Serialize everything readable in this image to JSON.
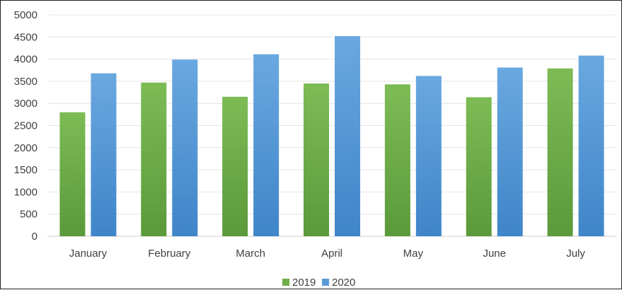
{
  "chart_data": {
    "type": "bar",
    "categories": [
      "January",
      "February",
      "March",
      "April",
      "May",
      "June",
      "July"
    ],
    "series": [
      {
        "name": "2019",
        "values": [
          2800,
          3470,
          3150,
          3450,
          3430,
          3140,
          3790
        ],
        "color": "#70ad47"
      },
      {
        "name": "2020",
        "values": [
          3680,
          3990,
          4110,
          4520,
          3620,
          3810,
          4080
        ],
        "color": "#5b9bd5"
      }
    ],
    "ylim": [
      0,
      5000
    ],
    "yticks": [
      "0",
      "500",
      "1000",
      "1500",
      "2000",
      "2500",
      "3000",
      "3500",
      "4000",
      "4500",
      "5000"
    ],
    "grid": true,
    "legend_position": "bottom"
  }
}
